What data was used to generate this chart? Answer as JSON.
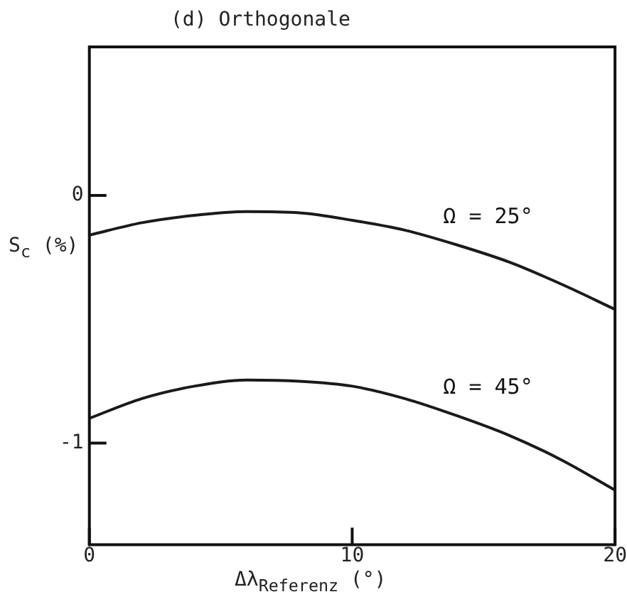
{
  "chart_data": {
    "type": "line",
    "title": "(d) Orthogonale",
    "xlabel": "Δλ$_{Referenz}$ (°)",
    "ylabel": "S$_{c}$ (%)",
    "x": [
      0,
      2,
      4,
      6,
      8,
      10,
      12,
      14,
      16,
      18,
      20
    ],
    "series": [
      {
        "name": "Ω = 25°",
        "color": "#1a1a1a",
        "values": [
          -0.16,
          -0.11,
          -0.08,
          -0.065,
          -0.07,
          -0.1,
          -0.14,
          -0.2,
          -0.27,
          -0.36,
          -0.46
        ]
      },
      {
        "name": "Ω = 45°",
        "color": "#1a1a1a",
        "values": [
          -0.9,
          -0.82,
          -0.77,
          -0.745,
          -0.75,
          -0.77,
          -0.82,
          -0.89,
          -0.97,
          -1.07,
          -1.19
        ]
      }
    ],
    "xlim": [
      0,
      20
    ],
    "xticks": [
      0,
      10,
      20
    ],
    "ylim": [
      -1.41,
      0.6
    ],
    "yticks": [
      -1,
      0
    ],
    "grid": false,
    "legend": false,
    "marker": "none",
    "line_style": "solid"
  }
}
